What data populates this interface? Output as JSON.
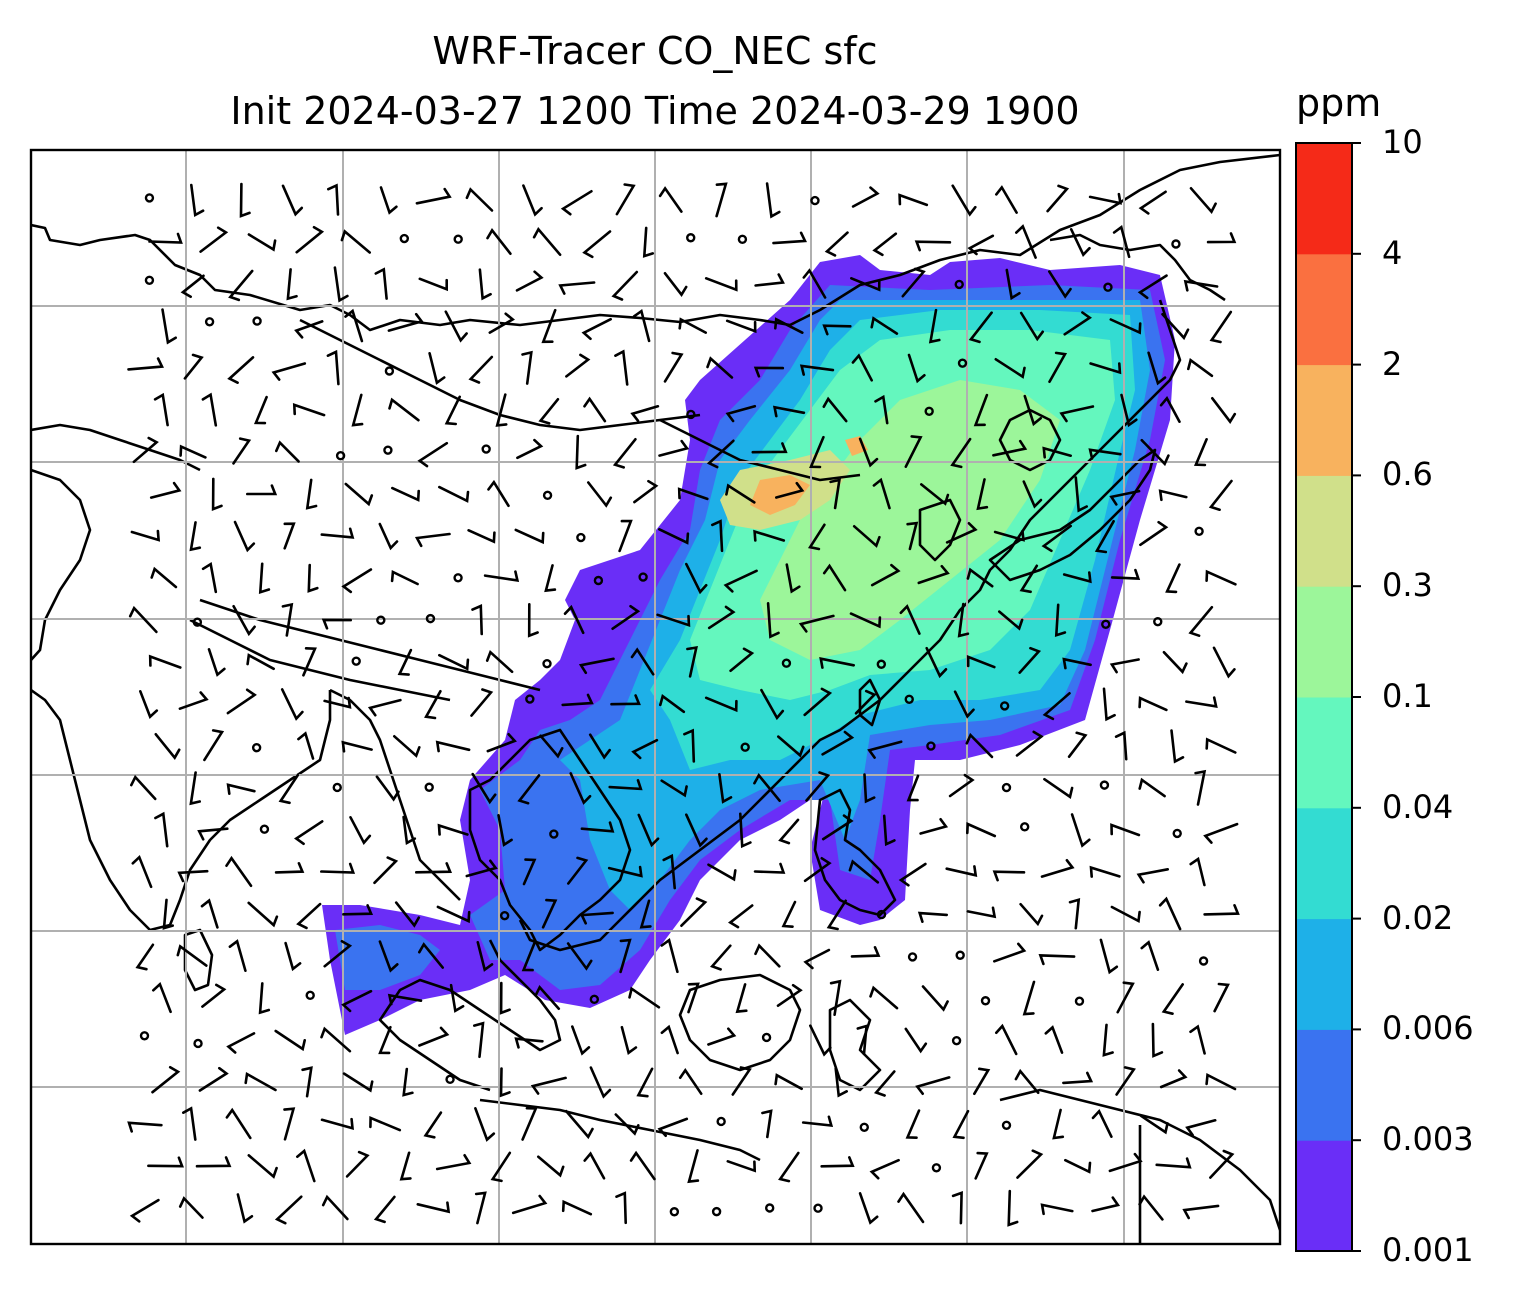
{
  "title": {
    "line1": "WRF-Tracer CO_NEC sfc",
    "line2": "Init 2024-03-27 1200 Time 2024-03-29 1900"
  },
  "colorbar": {
    "unit": "ppm",
    "levels": [
      "0.001",
      "0.003",
      "0.006",
      "0.02",
      "0.04",
      "0.1",
      "0.3",
      "0.6",
      "2",
      "4",
      "10"
    ],
    "colors": [
      "#6a2ef7",
      "#3a73f0",
      "#1eb0e8",
      "#33dcd2",
      "#64f7be",
      "#9cf69a",
      "#d0e08a",
      "#f8b25e",
      "#fa7040",
      "#f52a18"
    ]
  },
  "map": {
    "background": "#ffffff",
    "gridline_color": "#b0b0b0",
    "coastline_color": "#000000",
    "wind_barbs": "black"
  }
}
